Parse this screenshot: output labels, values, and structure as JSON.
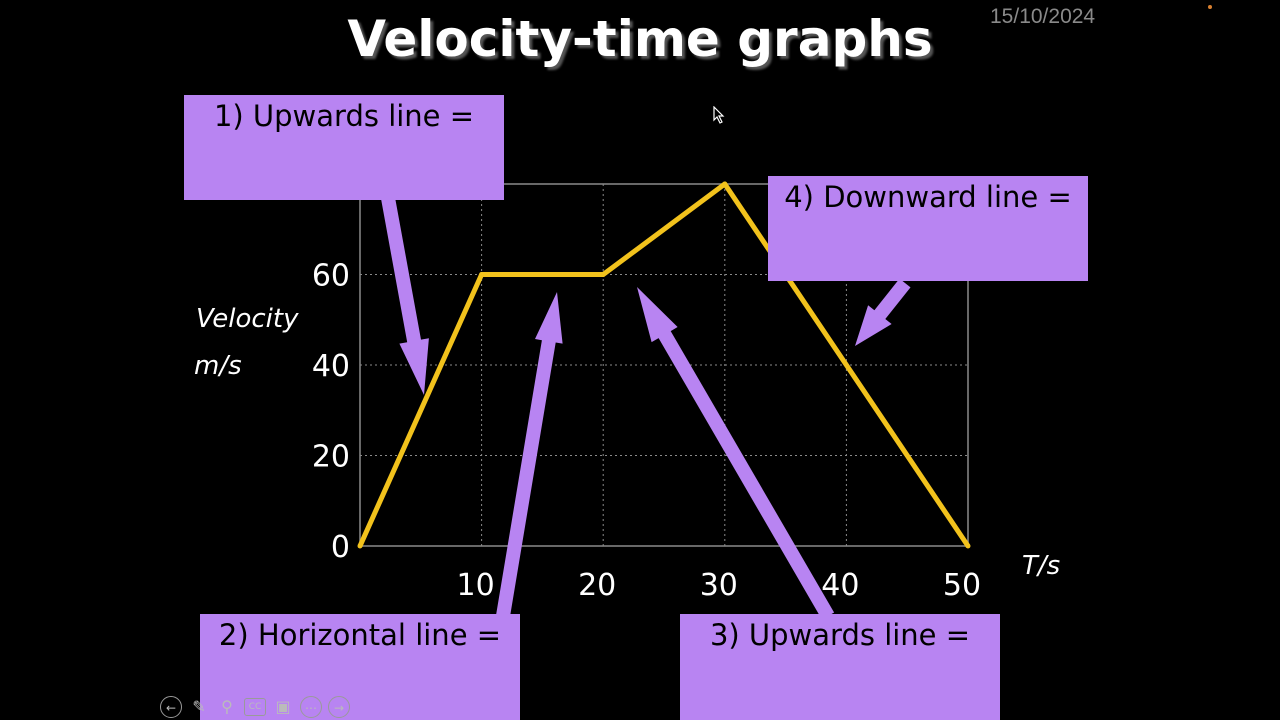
{
  "slide": {
    "title": "Velocity-time graphs",
    "date": "15/10/2024"
  },
  "boxes": {
    "upwards1": "1) Upwards line =",
    "horizontal": "2) Horizontal line =",
    "upwards3": "3) Upwards line =",
    "downward": "4) Downward line ="
  },
  "chart_data": {
    "type": "line",
    "title": "Velocity-time graphs",
    "xlabel": "T/s",
    "ylabel": "Velocity m/s",
    "ylabel_lines": [
      "Velocity",
      "m/s"
    ],
    "xlim": [
      0,
      50
    ],
    "ylim": [
      0,
      80
    ],
    "xticks": [
      10,
      20,
      30,
      40,
      50
    ],
    "yticks": [
      0,
      20,
      40,
      60
    ],
    "grid": true,
    "series": [
      {
        "x": [
          0,
          10,
          20,
          30,
          50
        ],
        "y": [
          0,
          60,
          60,
          80,
          0
        ],
        "color": "#f2c21c"
      }
    ]
  },
  "colors": {
    "background": "#000000",
    "line": "#f2c21c",
    "box": "#b884f2",
    "grid": "#8a8a8a"
  },
  "toolbar": {
    "icons": [
      "back-icon",
      "pen-icon",
      "zoom-icon",
      "captions-icon",
      "camera-icon",
      "more-icon",
      "next-icon"
    ]
  }
}
